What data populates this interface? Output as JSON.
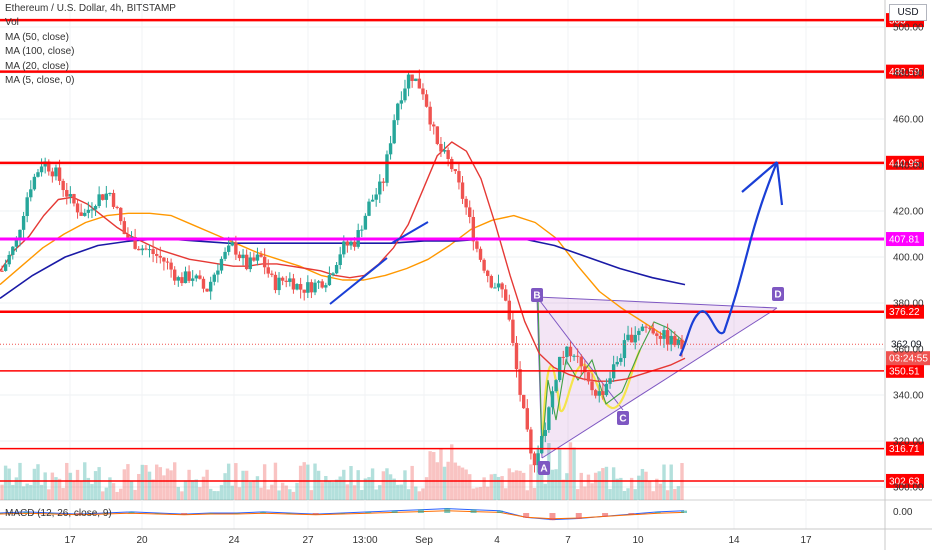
{
  "legend": {
    "title": "Ethereum / U.S. Dollar, 4h, BITSTAMP",
    "volume": "Vol",
    "ma50": "MA (50, close)",
    "ma100": "MA (100, close)",
    "ma20": "MA (20, close)",
    "ma5": "MA (5, close, 0)"
  },
  "currency": "USD",
  "macd_label": "MACD (12, 26, close, 9)",
  "colors": {
    "up": "#26a69a",
    "down": "#ef5350",
    "level": "#ff0000",
    "magenta": "#ff00ff",
    "ma50": "#e53935",
    "ma100": "#ff9800",
    "ma200": "#1a1aa6",
    "ma5": "#43a047",
    "pattern": "#7e57c2",
    "arrow": "#1a3fd6",
    "yellow": "#f4e44b"
  },
  "chart_data": {
    "type": "candlestick",
    "y_ticks": [
      "500.00",
      "480.00",
      "460.00",
      "440.00",
      "420.00",
      "400.00",
      "380.00",
      "360.00",
      "340.00",
      "320.00",
      "300.00"
    ],
    "ylim": [
      296,
      507
    ],
    "x_ticks": [
      "17",
      "20",
      "24",
      "27",
      "13:00",
      "Sep",
      "4",
      "7",
      "10",
      "14",
      "17"
    ],
    "price_levels": [
      {
        "value": 503.0,
        "label": "503"
      },
      {
        "value": 480.59,
        "label": "480.59"
      },
      {
        "value": 440.95,
        "label": "440.95"
      },
      {
        "value": 407.81,
        "label": "407.81"
      },
      {
        "value": 376.22,
        "label": "376.22"
      },
      {
        "value": 350.51,
        "label": "350.51"
      },
      {
        "value": 316.71,
        "label": "316.71"
      },
      {
        "value": 302.63,
        "label": "302.63"
      }
    ],
    "current_price": "362.09",
    "countdown": "03:24:55",
    "price_series": [
      394,
      406,
      430,
      442,
      436,
      425,
      418,
      426,
      428,
      410,
      405,
      402,
      398,
      390,
      392,
      385,
      398,
      405,
      396,
      400,
      388,
      391,
      386,
      388,
      391,
      404,
      407,
      423,
      432,
      466,
      480,
      472,
      448,
      440,
      424,
      402,
      389,
      384,
      344,
      309,
      328,
      356,
      360,
      345,
      340,
      352,
      364,
      370,
      368,
      364,
      361
    ],
    "ma50": [
      394,
      403,
      409,
      418,
      425,
      426,
      423,
      418,
      413,
      409,
      406,
      403,
      401,
      399,
      398,
      397,
      396,
      396,
      397,
      397,
      396,
      395,
      394,
      392,
      391,
      392,
      397,
      404,
      414,
      429,
      444,
      450,
      446,
      434,
      414,
      392,
      372,
      358,
      352,
      349,
      347,
      346,
      346,
      347,
      349,
      351,
      353,
      356
    ],
    "ma100": [
      388,
      396,
      404,
      410,
      415,
      418,
      419,
      419,
      418,
      414,
      410,
      406,
      402,
      399,
      396,
      392,
      390,
      390,
      392,
      395,
      399,
      405,
      412,
      416,
      418,
      415,
      408,
      396,
      385,
      378,
      372,
      366,
      363
    ],
    "ma200": [
      382,
      392,
      400,
      405,
      407,
      408,
      407,
      406,
      406,
      406,
      406,
      406,
      406,
      407,
      407,
      408,
      408,
      405,
      400,
      395,
      391,
      388
    ],
    "macd": [
      0,
      1,
      0,
      -1,
      0,
      1,
      0,
      -1,
      0,
      0,
      1,
      0,
      -1,
      0,
      1,
      2,
      3,
      4,
      3,
      2,
      -4,
      -6,
      -5,
      -3,
      -1,
      1,
      2
    ]
  },
  "pattern_labels": {
    "a": "A",
    "b": "B",
    "c": "C",
    "d": "D"
  }
}
